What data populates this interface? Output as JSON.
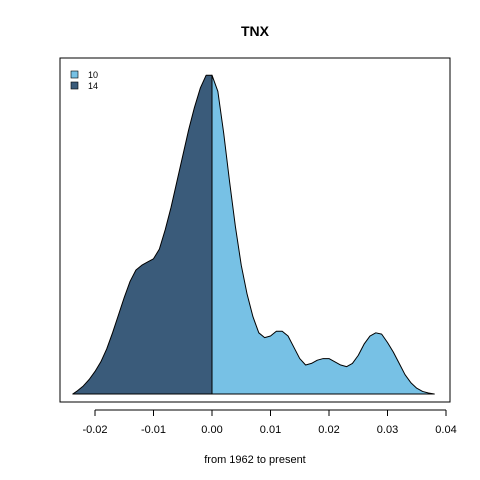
{
  "chart_data": {
    "type": "area",
    "title": "TNX",
    "xlabel": "from 1962 to present",
    "ylabel": "",
    "xlim": [
      -0.024,
      0.039
    ],
    "ylim": [
      0,
      1
    ],
    "x_ticks": [
      -0.02,
      -0.01,
      0.0,
      0.01,
      0.02,
      0.03,
      0.04
    ],
    "x_tick_labels": [
      "-0.02",
      "-0.01",
      "0.00",
      "0.01",
      "0.02",
      "0.03",
      "0.04"
    ],
    "y_axis_shown": false,
    "grid": false,
    "legend": {
      "position": "top-left",
      "entries": [
        {
          "label": "10",
          "color": "#77c1e5"
        },
        {
          "label": "14",
          "color": "#3a5b7a"
        }
      ]
    },
    "split_x": 0.0,
    "series": [
      {
        "name": "10",
        "color": "#77c1e5",
        "x": [
          0.0,
          0.001,
          0.002,
          0.003,
          0.004,
          0.005,
          0.006,
          0.007,
          0.008,
          0.009,
          0.01,
          0.011,
          0.012,
          0.013,
          0.014,
          0.015,
          0.016,
          0.017,
          0.018,
          0.019,
          0.02,
          0.021,
          0.022,
          0.023,
          0.024,
          0.025,
          0.026,
          0.027,
          0.028,
          0.029,
          0.03,
          0.031,
          0.032,
          0.033,
          0.034,
          0.035,
          0.036,
          0.037,
          0.038
        ],
        "y": [
          0.99,
          0.94,
          0.81,
          0.66,
          0.52,
          0.4,
          0.31,
          0.24,
          0.19,
          0.175,
          0.18,
          0.195,
          0.195,
          0.18,
          0.145,
          0.11,
          0.09,
          0.095,
          0.105,
          0.11,
          0.11,
          0.1,
          0.09,
          0.085,
          0.095,
          0.12,
          0.155,
          0.18,
          0.19,
          0.186,
          0.16,
          0.13,
          0.095,
          0.06,
          0.035,
          0.018,
          0.008,
          0.003,
          0.0
        ]
      },
      {
        "name": "14",
        "color": "#3a5b7a",
        "x": [
          -0.0238,
          -0.023,
          -0.022,
          -0.021,
          -0.02,
          -0.019,
          -0.018,
          -0.017,
          -0.016,
          -0.015,
          -0.014,
          -0.013,
          -0.012,
          -0.011,
          -0.01,
          -0.009,
          -0.008,
          -0.007,
          -0.006,
          -0.005,
          -0.004,
          -0.003,
          -0.002,
          -0.001,
          0.0
        ],
        "y": [
          0.0,
          0.01,
          0.025,
          0.045,
          0.07,
          0.1,
          0.14,
          0.19,
          0.245,
          0.3,
          0.35,
          0.385,
          0.4,
          0.41,
          0.42,
          0.45,
          0.51,
          0.58,
          0.66,
          0.74,
          0.82,
          0.89,
          0.95,
          0.99,
          0.99
        ]
      }
    ]
  }
}
